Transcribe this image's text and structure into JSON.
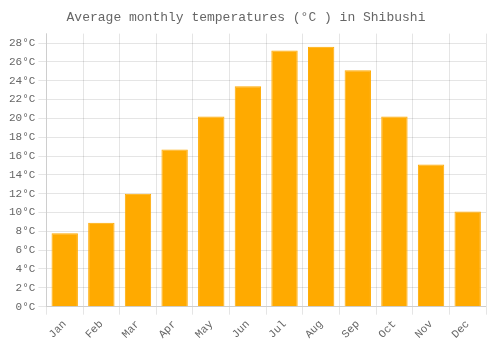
{
  "chart_data": {
    "type": "bar",
    "title": "Average monthly temperatures (°C ) in Shibushi",
    "categories": [
      "Jan",
      "Feb",
      "Mar",
      "Apr",
      "May",
      "Jun",
      "Jul",
      "Aug",
      "Sep",
      "Oct",
      "Nov",
      "Dec"
    ],
    "values": [
      7.8,
      8.9,
      12.0,
      16.7,
      20.2,
      23.4,
      27.2,
      27.6,
      25.1,
      20.2,
      15.1,
      10.1
    ],
    "color": "#FFAA00",
    "ylim": [
      0,
      29
    ],
    "yticks": [
      {
        "value": 0,
        "label": "0°C"
      },
      {
        "value": 2,
        "label": "2°C"
      },
      {
        "value": 4,
        "label": "4°C"
      },
      {
        "value": 6,
        "label": "6°C"
      },
      {
        "value": 8,
        "label": "8°C"
      },
      {
        "value": 10,
        "label": "10°C"
      },
      {
        "value": 12,
        "label": "12°C"
      },
      {
        "value": 14,
        "label": "14°C"
      },
      {
        "value": 16,
        "label": "16°C"
      },
      {
        "value": 18,
        "label": "18°C"
      },
      {
        "value": 20,
        "label": "20°C"
      },
      {
        "value": 22,
        "label": "22°C"
      },
      {
        "value": 24,
        "label": "24°C"
      },
      {
        "value": 26,
        "label": "26°C"
      },
      {
        "value": 28,
        "label": "28°C"
      }
    ],
    "grid": true
  }
}
